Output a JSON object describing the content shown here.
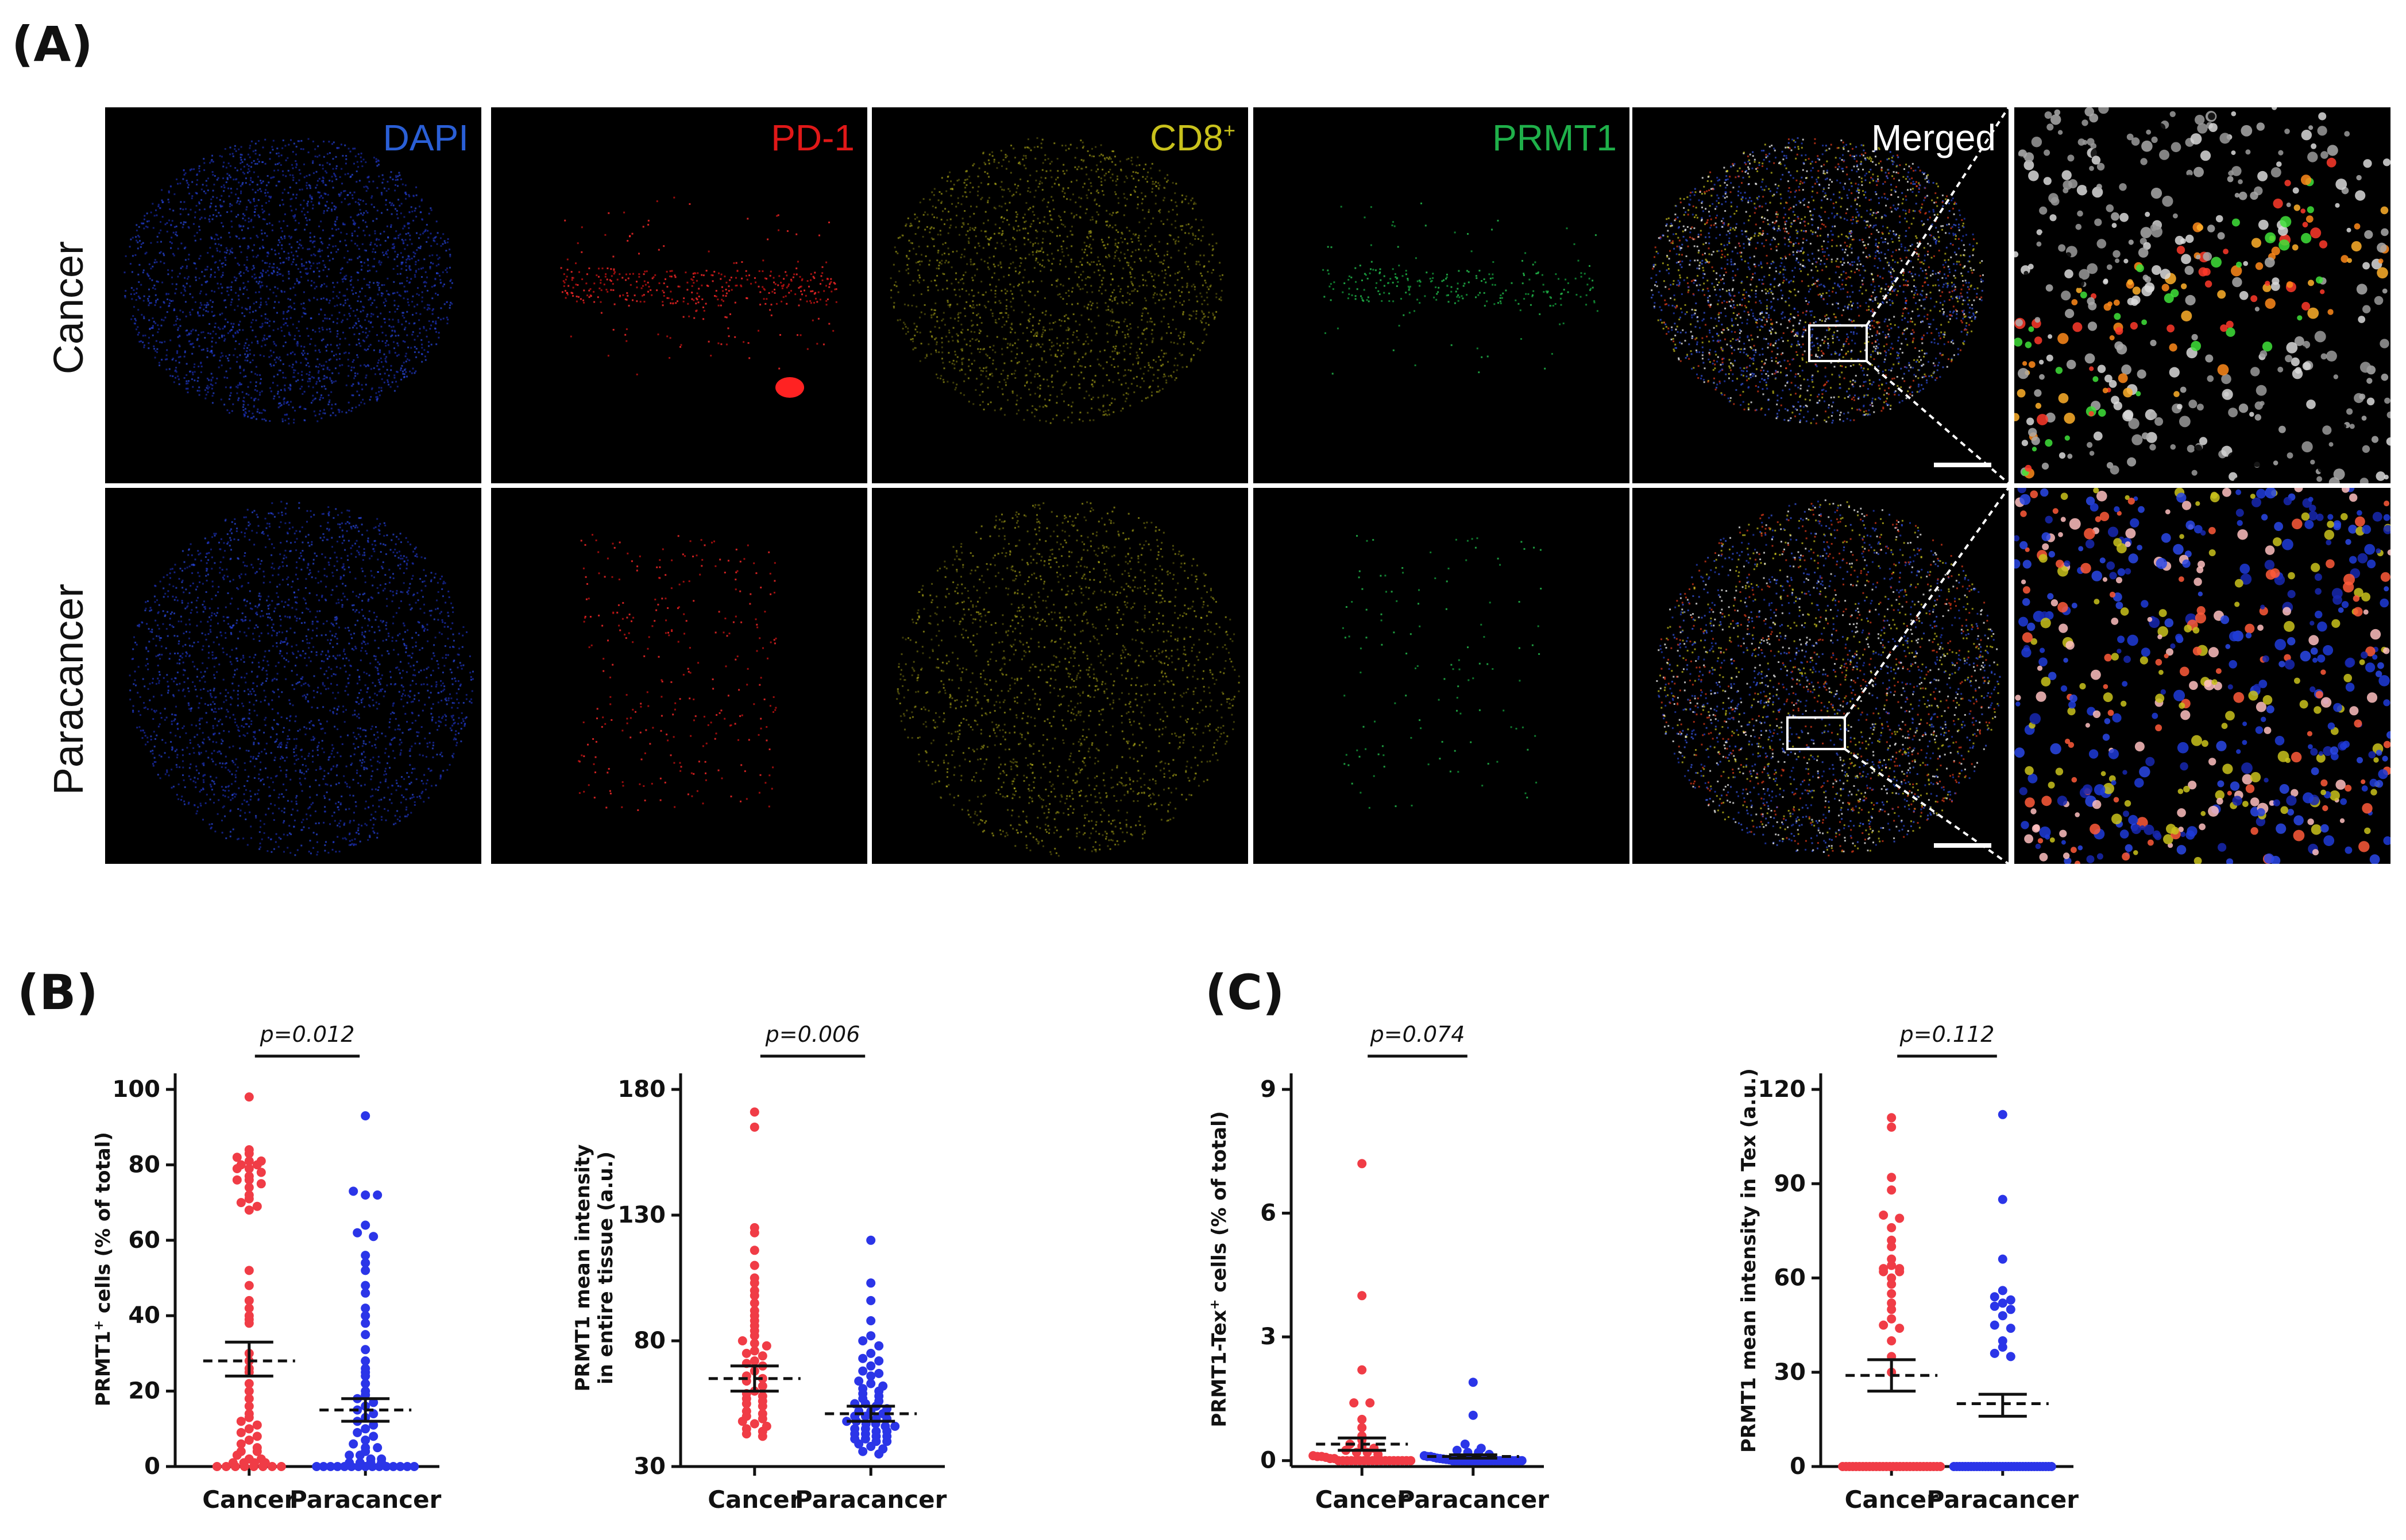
{
  "panels": {
    "A": "(A)",
    "B": "(B)",
    "C": "(C)"
  },
  "rows": [
    "Cancer",
    "Paracancer"
  ],
  "channels": [
    {
      "label": "DAPI",
      "sup": "",
      "color": "#2a5fd6"
    },
    {
      "label": "PD-1",
      "sup": "",
      "color": "#e01818"
    },
    {
      "label": "CD8",
      "sup": "+",
      "color": "#c9c21c"
    },
    {
      "label": "PRMT1",
      "sup": "",
      "color": "#1fb04a"
    },
    {
      "label": "Merged",
      "sup": "",
      "color": "#ffffff"
    }
  ],
  "chart_data": [
    {
      "type": "scatter",
      "panel": "B",
      "ylabel_parts": [
        "PRMT1",
        "+",
        " cells (% of total)"
      ],
      "categories": [
        "Cancer",
        "Paracancer"
      ],
      "yticks": [
        0,
        20,
        40,
        60,
        80,
        100
      ],
      "ylim": [
        0,
        100
      ],
      "pvalue": "p=0.012",
      "series": [
        {
          "color": "#f03c46",
          "mean": 28,
          "sem_low": 24,
          "sem_high": 33,
          "values": [
            98,
            84,
            83,
            82,
            81,
            81,
            80,
            80,
            79,
            79,
            78,
            77,
            76,
            76,
            75,
            74,
            72,
            71,
            70,
            69,
            68,
            52,
            48,
            44,
            42,
            40,
            39,
            38,
            30,
            28,
            26,
            25,
            22,
            20,
            18,
            16,
            14,
            13,
            12,
            11,
            10,
            9,
            8,
            7,
            6,
            5,
            4,
            4,
            3,
            2,
            2,
            1,
            1,
            1,
            1,
            0,
            0,
            0,
            0,
            0,
            0,
            0,
            0
          ]
        },
        {
          "color": "#2b35e8",
          "mean": 15,
          "sem_low": 12,
          "sem_high": 18,
          "values": [
            93,
            73,
            72,
            72,
            64,
            62,
            61,
            56,
            54,
            52,
            48,
            46,
            42,
            40,
            38,
            35,
            31,
            28,
            26,
            25,
            24,
            22,
            20,
            19,
            18,
            17,
            16,
            15,
            14,
            13,
            12,
            11,
            10,
            9,
            8,
            7,
            6,
            5,
            5,
            4,
            3,
            3,
            2,
            2,
            1,
            1,
            1,
            1,
            0,
            0,
            0,
            0,
            0,
            0,
            0,
            0,
            0,
            0,
            0,
            0,
            0,
            0,
            0
          ]
        }
      ]
    },
    {
      "type": "scatter",
      "panel": "B",
      "ylabel_lines": [
        "PRMT1 mean intensity",
        "in entire tissue (a.u.)"
      ],
      "categories": [
        "Cancer",
        "Paracancer"
      ],
      "yticks": [
        30,
        80,
        130,
        180
      ],
      "ylim": [
        30,
        180
      ],
      "pvalue": "p=0.006",
      "series": [
        {
          "color": "#f03c46",
          "mean": 65,
          "sem_low": 60,
          "sem_high": 70,
          "values": [
            171,
            165,
            125,
            123,
            116,
            110,
            105,
            103,
            100,
            98,
            95,
            92,
            90,
            88,
            86,
            84,
            82,
            80,
            79,
            78,
            76,
            75,
            74,
            72,
            71,
            70,
            68,
            66,
            65,
            64,
            62,
            60,
            59,
            58,
            57,
            56,
            55,
            54,
            52,
            51,
            50,
            49,
            48,
            47,
            46,
            45,
            44,
            43,
            42
          ]
        },
        {
          "color": "#2b35e8",
          "mean": 51,
          "sem_low": 48,
          "sem_high": 54,
          "values": [
            120,
            103,
            96,
            88,
            82,
            80,
            78,
            75,
            73,
            72,
            70,
            68,
            67,
            66,
            64,
            63,
            62,
            61,
            60,
            59,
            58,
            57,
            56,
            55,
            55,
            54,
            53,
            52,
            52,
            51,
            50,
            50,
            49,
            49,
            48,
            48,
            47,
            47,
            46,
            46,
            45,
            45,
            44,
            44,
            43,
            43,
            42,
            42,
            41,
            41,
            40,
            40,
            39,
            38,
            37,
            36,
            35
          ]
        }
      ]
    },
    {
      "type": "scatter",
      "panel": "C",
      "ylabel_parts": [
        "PRMT1-Tex",
        "+",
        " cells (% of total)"
      ],
      "categories": [
        "Cancer",
        "Paracancer"
      ],
      "yticks": [
        0,
        3,
        6,
        9
      ],
      "ylim": [
        0,
        9
      ],
      "pvalue": "p=0.074",
      "series": [
        {
          "color": "#f03c46",
          "mean": 0.4,
          "sem_low": 0.25,
          "sem_high": 0.55,
          "values": [
            7.2,
            4.0,
            2.2,
            1.4,
            1.4,
            1.0,
            0.8,
            0.6,
            0.5,
            0.4,
            0.35,
            0.3,
            0.25,
            0.2,
            0.2,
            0.15,
            0.12,
            0.1,
            0.1,
            0.08,
            0.05,
            0.05,
            0,
            0,
            0,
            0,
            0,
            0,
            0,
            0,
            0,
            0,
            0,
            0,
            0,
            0,
            0,
            0,
            0,
            0
          ]
        },
        {
          "color": "#2b35e8",
          "mean": 0.1,
          "sem_low": 0.06,
          "sem_high": 0.14,
          "values": [
            1.9,
            1.1,
            0.4,
            0.3,
            0.25,
            0.2,
            0.2,
            0.15,
            0.12,
            0.1,
            0.1,
            0.08,
            0.06,
            0.05,
            0.04,
            0.03,
            0.02,
            0,
            0,
            0,
            0,
            0,
            0,
            0,
            0,
            0,
            0,
            0,
            0,
            0,
            0,
            0,
            0,
            0,
            0,
            0,
            0,
            0,
            0,
            0
          ]
        }
      ]
    },
    {
      "type": "scatter",
      "panel": "C",
      "ylabel_lines": [
        "PRMT1 mean intensity in Tex  (a.u.)"
      ],
      "categories": [
        "Cancer",
        "Paracancer"
      ],
      "yticks": [
        0,
        30,
        60,
        90,
        120
      ],
      "ylim": [
        0,
        120
      ],
      "pvalue": "p=0.112",
      "series": [
        {
          "color": "#f03c46",
          "mean": 29,
          "sem_low": 24,
          "sem_high": 34,
          "values": [
            111,
            108,
            92,
            88,
            80,
            79,
            76,
            72,
            70,
            66,
            64,
            63,
            63,
            62,
            62,
            60,
            58,
            55,
            52,
            50,
            47,
            45,
            44,
            40,
            35,
            30,
            0,
            0,
            0,
            0,
            0,
            0,
            0,
            0,
            0,
            0,
            0,
            0,
            0,
            0,
            0,
            0,
            0,
            0,
            0,
            0,
            0,
            0,
            0,
            0,
            0,
            0,
            0,
            0,
            0,
            0
          ]
        },
        {
          "color": "#2b35e8",
          "mean": 20,
          "sem_low": 16,
          "sem_high": 23,
          "values": [
            112,
            85,
            66,
            56,
            54,
            53,
            52,
            51,
            50,
            48,
            45,
            44,
            40,
            38,
            36,
            35,
            0,
            0,
            0,
            0,
            0,
            0,
            0,
            0,
            0,
            0,
            0,
            0,
            0,
            0,
            0,
            0,
            0,
            0,
            0,
            0,
            0,
            0,
            0,
            0,
            0,
            0,
            0,
            0,
            0,
            0,
            0,
            0,
            0,
            0,
            0
          ]
        }
      ]
    }
  ]
}
